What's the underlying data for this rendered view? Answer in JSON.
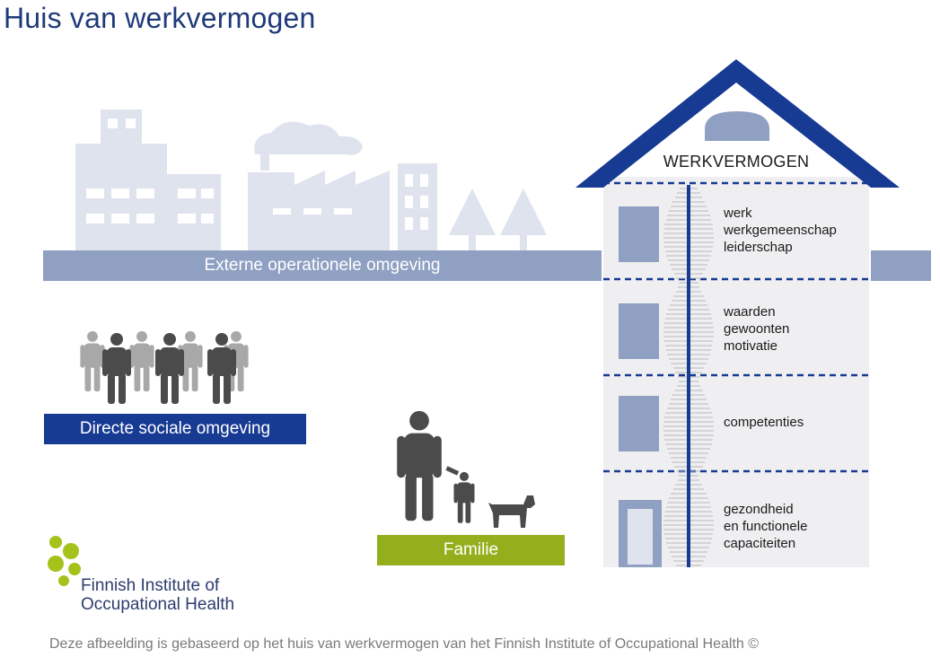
{
  "title": "Huis van werkvermogen",
  "house": {
    "roof_label": "WERKVERMOGEN",
    "floors": [
      {
        "lines": [
          "werk",
          "werkgemeenschap",
          "leiderschap"
        ]
      },
      {
        "lines": [
          "waarden",
          "gewoonten",
          "motivatie"
        ]
      },
      {
        "lines": [
          "competenties"
        ]
      },
      {
        "lines": [
          "gezondheid",
          "en functionele",
          "capaciteiten"
        ]
      }
    ]
  },
  "bands": {
    "externe": "Externe operationele omgeving",
    "sociaal": "Directe sociale omgeving",
    "familie": "Familie"
  },
  "logo": {
    "line1": "Finnish Institute of",
    "line2": "Occupational Health"
  },
  "footer": "Deze afbeelding is gebaseerd op het huis van werkvermogen van het Finnish Institute of Occupational Health ©",
  "colors": {
    "title": "#1f3a7a",
    "roof": "#173a93",
    "band_externe": "#8fa0c2",
    "band_sociaal": "#173a93",
    "band_familie": "#93b01c",
    "city": "#dfe3ee",
    "people": "#4b4b4b",
    "logo_green": "#a3c21a"
  }
}
